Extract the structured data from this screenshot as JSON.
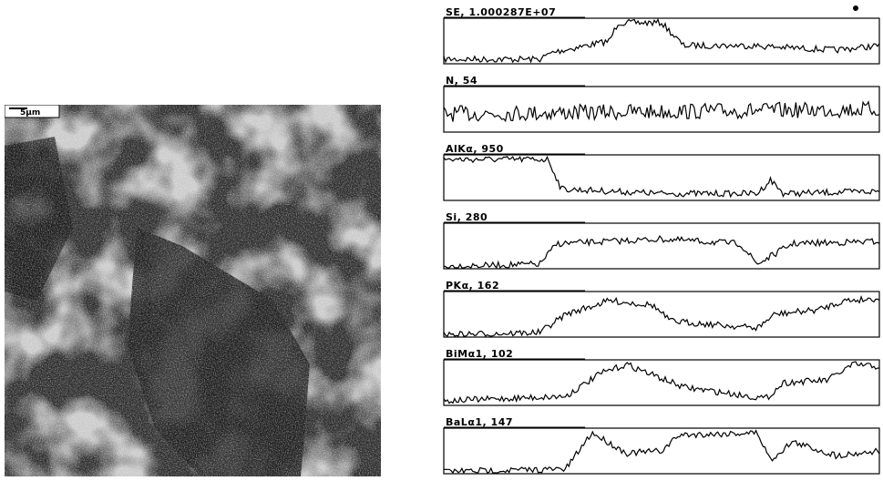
{
  "image": {
    "scale_bar": "5μm"
  },
  "profiles": [
    {
      "label": "SE, 1.000287E+07"
    },
    {
      "label": "N, 54"
    },
    {
      "label": "AlKα, 950"
    },
    {
      "label": "Si, 280"
    },
    {
      "label": "PKα, 162"
    },
    {
      "label": "BiMα1, 102"
    },
    {
      "label": "BaLα1, 147"
    }
  ]
}
